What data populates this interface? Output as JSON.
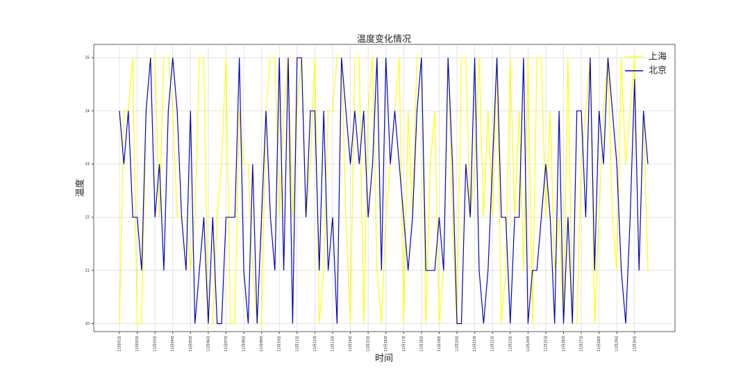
{
  "chart_data": {
    "type": "line",
    "title": "温度变化情况",
    "x_label": "时间",
    "y_label": "温度",
    "categories": [
      "11月01日",
      null,
      null,
      null,
      "11月02日",
      null,
      null,
      null,
      "11月03日",
      null,
      null,
      null,
      "11月04日",
      null,
      null,
      null,
      "11月05日",
      null,
      null,
      null,
      "11月06日",
      null,
      null,
      null,
      "11月07日",
      null,
      null,
      null,
      "11月08日",
      null,
      null,
      null,
      "11月09日",
      null,
      null,
      null,
      "11月10日",
      null,
      null,
      null,
      "11月11日",
      null,
      null,
      null,
      "11月12日",
      null,
      null,
      null,
      "11月13日",
      null,
      null,
      null,
      "11月14日",
      null,
      null,
      null,
      "11月15日",
      null,
      null,
      null,
      "11月16日",
      null,
      null,
      null,
      "11月17日",
      null,
      null,
      null,
      "11月18日",
      null,
      null,
      null,
      "11月19日",
      null,
      null,
      null,
      "11月20日",
      null,
      null,
      null,
      "11月21日",
      null,
      null,
      null,
      "11月22日",
      null,
      null,
      null,
      "11月23日",
      null,
      null,
      null,
      "11月24日",
      null,
      null,
      null,
      "11月25日",
      null,
      null,
      null,
      "11月26日",
      null,
      null,
      null,
      "11月27日",
      null,
      null,
      null,
      "11月28日",
      null,
      null,
      null,
      "11月29日",
      null,
      null,
      null,
      "11月30日",
      null,
      null,
      null
    ],
    "series": [
      {
        "name": "上海",
        "color": "#ffff00",
        "values": [
          20,
          24,
          24,
          25,
          20,
          20,
          24,
          25,
          25,
          22,
          25,
          25,
          24,
          22,
          22,
          22,
          21,
          22,
          25,
          25,
          20,
          20,
          22,
          23,
          25,
          20,
          20,
          24,
          23,
          23,
          21,
          20,
          20,
          24,
          25,
          25,
          22,
          24,
          25,
          22,
          24,
          25,
          22,
          23,
          25,
          20,
          21,
          24,
          24,
          25,
          25,
          22,
          20,
          25,
          25,
          20,
          24,
          25,
          21,
          20,
          22,
          23,
          24,
          25,
          20,
          24,
          22,
          25,
          25,
          20,
          23,
          24,
          20,
          21,
          25,
          22,
          20,
          25,
          25,
          22,
          23,
          25,
          22,
          24,
          22,
          25,
          20,
          21,
          25,
          22,
          24,
          21,
          25,
          20,
          25,
          25,
          22,
          24,
          21,
          22,
          20,
          25,
          20,
          20,
          23,
          24,
          25,
          20,
          22,
          24,
          25,
          22,
          21,
          25,
          23,
          24,
          25,
          21,
          24,
          21
        ]
      },
      {
        "name": "北京",
        "color": "#0000cc",
        "values": [
          24,
          23,
          24,
          22,
          22,
          21,
          24,
          25,
          22,
          23,
          21,
          24,
          25,
          24,
          22,
          21,
          24,
          20,
          21,
          22,
          20,
          22,
          20,
          20,
          22,
          22,
          22,
          25,
          21,
          20,
          23,
          20,
          22,
          24,
          22,
          21,
          25,
          21,
          25,
          20,
          25,
          25,
          22,
          24,
          24,
          21,
          24,
          21,
          22,
          20,
          25,
          24,
          23,
          24,
          23,
          24,
          22,
          23,
          25,
          21,
          25,
          23,
          24,
          23,
          22,
          21,
          22,
          24,
          25,
          21,
          21,
          21,
          22,
          21,
          25,
          23,
          20,
          20,
          23,
          22,
          25,
          21,
          20,
          21,
          23,
          25,
          22,
          22,
          20,
          22,
          22,
          25,
          20,
          21,
          21,
          22,
          23,
          22,
          20,
          24,
          20,
          22,
          20,
          24,
          24,
          22,
          25,
          21,
          24,
          23,
          25,
          24,
          23,
          21,
          20,
          22,
          24.6,
          21,
          24,
          23
        ]
      }
    ],
    "ylim": [
      19.85,
      25.25
    ],
    "yticks": [
      20,
      21,
      22,
      23,
      24,
      25
    ],
    "grid": true,
    "legend": "upper right"
  }
}
